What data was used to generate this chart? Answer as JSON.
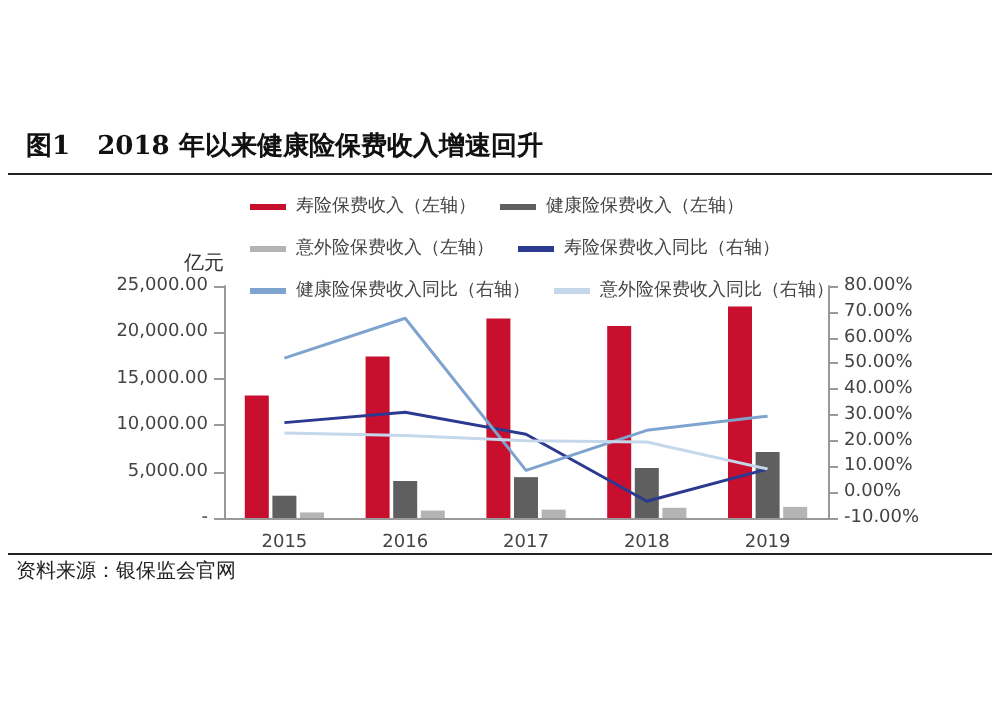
{
  "chart_data": {
    "type": "bar",
    "title": "图1   2018 年以来健康险保费收入增速回升",
    "ylabel": "亿元",
    "annotations": [
      "资料来源：银保监会官网"
    ],
    "categories": [
      "2015",
      "2016",
      "2017",
      "2018",
      "2019"
    ],
    "series": [
      {
        "name": "寿险保费收入（左轴）",
        "color": "#c8102e",
        "values": [
          13200,
          17400,
          21500,
          20700,
          22800
        ]
      },
      {
        "name": "健康险保费收入（左轴）",
        "color": "#5f5f5f",
        "values": [
          2400,
          4000,
          4400,
          5400,
          7100
        ]
      },
      {
        "name": "意外险保费收入（左轴）",
        "color": "#b4b4b4",
        "values": [
          600,
          800,
          900,
          1100,
          1200
        ]
      },
      {
        "name": "寿险保费收入同比（右轴）",
        "type": "line",
        "axis": "y2",
        "color": "#2b3990",
        "values": [
          27,
          31,
          22.5,
          -3.5,
          9
        ]
      },
      {
        "name": "健康险保费收入同比（右轴）",
        "type": "line",
        "axis": "y2",
        "color": "#7fa3cf",
        "values": [
          52,
          67.5,
          8.5,
          24,
          29.5
        ]
      },
      {
        "name": "意外险保费收入同比（右轴）",
        "type": "line",
        "axis": "y2",
        "color": "#c5d7ea",
        "values": [
          23,
          22,
          20,
          19.5,
          9
        ]
      }
    ],
    "ylim": [
      0,
      25000
    ],
    "yticks": [
      {
        "value": 0,
        "label": "-"
      },
      {
        "value": 5000,
        "label": "5,000.00"
      },
      {
        "value": 10000,
        "label": "10,000.00"
      },
      {
        "value": 15000,
        "label": "15,000.00"
      },
      {
        "value": 20000,
        "label": "20,000.00"
      },
      {
        "value": 25000,
        "label": "25,000.00"
      }
    ],
    "y2lim": [
      -10,
      80
    ],
    "y2ticks": [
      {
        "value": -10,
        "label": "-10.00%"
      },
      {
        "value": 0,
        "label": "0.00%"
      },
      {
        "value": 10,
        "label": "10.00%"
      },
      {
        "value": 20,
        "label": "20.00%"
      },
      {
        "value": 30,
        "label": "30.00%"
      },
      {
        "value": 40,
        "label": "40.00%"
      },
      {
        "value": 50,
        "label": "50.00%"
      },
      {
        "value": 60,
        "label": "60.00%"
      },
      {
        "value": 70,
        "label": "70.00%"
      },
      {
        "value": 80,
        "label": "80.00%"
      }
    ],
    "legend": "top",
    "grid": false,
    "marker": "none"
  }
}
